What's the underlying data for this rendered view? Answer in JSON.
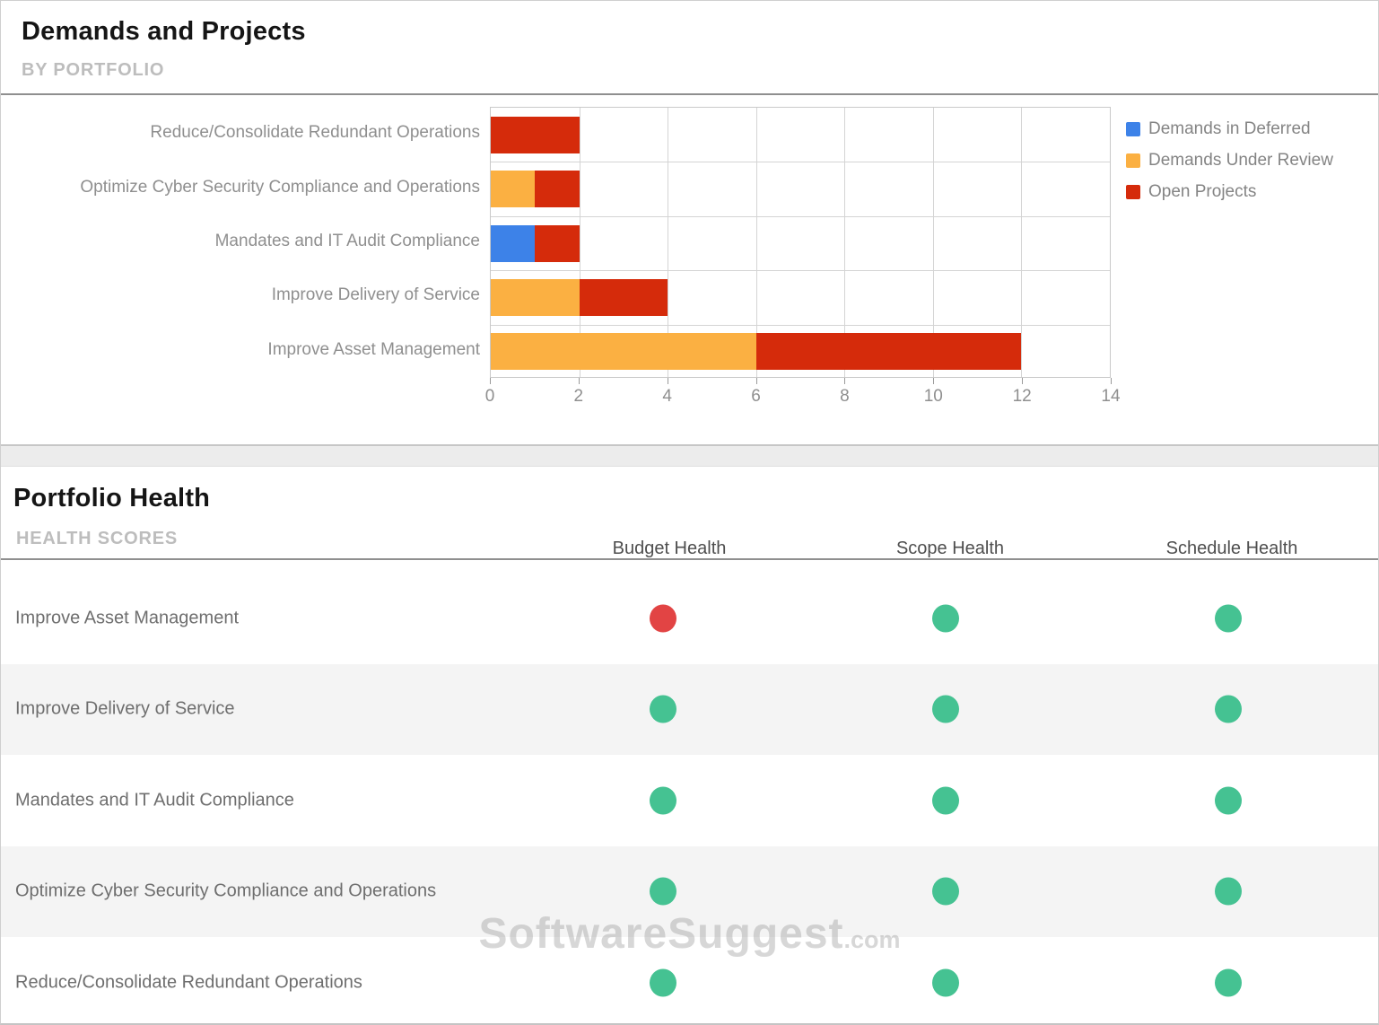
{
  "demands": {
    "title": "Demands and Projects",
    "subtitle": "BY PORTFOLIO"
  },
  "chart_data": {
    "type": "bar",
    "orientation": "horizontal",
    "stacked": true,
    "title": "Demands and Projects",
    "subtitle": "BY PORTFOLIO",
    "categories": [
      "Reduce/Consolidate Redundant Operations",
      "Optimize Cyber Security Compliance and Operations",
      "Mandates and IT Audit Compliance",
      "Improve Delivery of Service",
      "Improve Asset Management"
    ],
    "series": [
      {
        "name": "Demands in Deferred",
        "color": "#3d82e8",
        "values": [
          0,
          0,
          1,
          0,
          0
        ]
      },
      {
        "name": "Demands Under Review",
        "color": "#fbb042",
        "values": [
          0,
          1,
          0,
          2,
          6
        ]
      },
      {
        "name": "Open Projects",
        "color": "#d52b0b",
        "values": [
          2,
          1,
          1,
          2,
          6
        ]
      }
    ],
    "xlim": [
      0,
      14
    ],
    "xticks": [
      0,
      2,
      4,
      6,
      8,
      10,
      12,
      14
    ],
    "grid": true,
    "legend_position": "top-right"
  },
  "health": {
    "title": "Portfolio Health",
    "subtitle": "HEALTH SCORES",
    "columns": [
      "Budget Health",
      "Scope Health",
      "Schedule Health"
    ],
    "status_colors": {
      "good": "#45c292",
      "critical": "#e24444"
    },
    "rows": [
      {
        "label": "Improve Asset Management",
        "statuses": [
          "critical",
          "good",
          "good"
        ]
      },
      {
        "label": "Improve Delivery of Service",
        "statuses": [
          "good",
          "good",
          "good"
        ]
      },
      {
        "label": "Mandates and IT Audit Compliance",
        "statuses": [
          "good",
          "good",
          "good"
        ]
      },
      {
        "label": "Optimize Cyber Security Compliance and Operations",
        "statuses": [
          "good",
          "good",
          "good"
        ]
      },
      {
        "label": "Reduce/Consolidate Redundant Operations",
        "statuses": [
          "good",
          "good",
          "good"
        ]
      }
    ]
  },
  "watermark": {
    "text": "SoftwareSuggest",
    "suffix": ".com"
  }
}
